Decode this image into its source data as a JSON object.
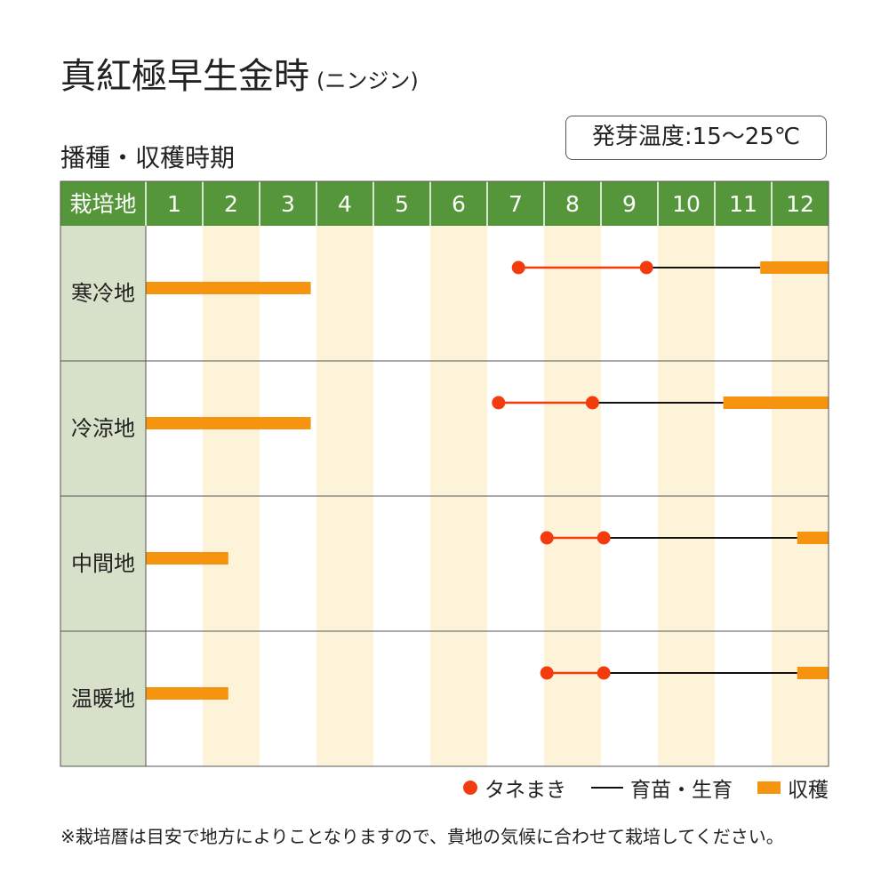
{
  "header": {
    "title": "真紅極早生金時",
    "title_sub": "(ニンジン)",
    "subtitle": "播種・収穫時期",
    "germination": "発芽温度:15～25℃"
  },
  "legend": {
    "sowing": "タネまき",
    "growing": "育苗・生育",
    "harvest": "収穫"
  },
  "note": "※栽培暦は目安で地方によりことなりますので、貴地の気候に合わせて栽培してください。",
  "colors": {
    "header_green": "#55963a",
    "region_bg": "#d7e0c8",
    "stripe": "#fdf3d8",
    "sowing": "#f23c0e",
    "harvest": "#f7940f",
    "growing": "#111111"
  },
  "chart_data": {
    "type": "table",
    "header_label": "栽培地",
    "months": [
      "1",
      "2",
      "3",
      "4",
      "5",
      "6",
      "7",
      "8",
      "9",
      "10",
      "11",
      "12"
    ],
    "month_range": [
      0,
      12
    ],
    "rows": [
      {
        "region": "寒冷地",
        "sowing": [
          [
            6.55,
            8.8
          ]
        ],
        "growing": [
          [
            8.8,
            10.8
          ]
        ],
        "harvest_late": [
          [
            10.8,
            12
          ]
        ],
        "harvest_early": [
          [
            0,
            2.9
          ]
        ]
      },
      {
        "region": "冷涼地",
        "sowing": [
          [
            6.2,
            7.85
          ]
        ],
        "growing": [
          [
            7.85,
            10.15
          ]
        ],
        "harvest_late": [
          [
            10.15,
            12
          ]
        ],
        "harvest_early": [
          [
            0,
            2.9
          ]
        ]
      },
      {
        "region": "中間地",
        "sowing": [
          [
            7.05,
            8.05
          ]
        ],
        "growing": [
          [
            8.05,
            11.45
          ]
        ],
        "harvest_late": [
          [
            11.45,
            12
          ]
        ],
        "harvest_early": [
          [
            0,
            1.45
          ]
        ]
      },
      {
        "region": "温暖地",
        "sowing": [
          [
            7.05,
            8.05
          ]
        ],
        "growing": [
          [
            8.05,
            11.45
          ]
        ],
        "harvest_late": [
          [
            11.45,
            12
          ]
        ],
        "harvest_early": [
          [
            0,
            1.45
          ]
        ]
      }
    ]
  }
}
